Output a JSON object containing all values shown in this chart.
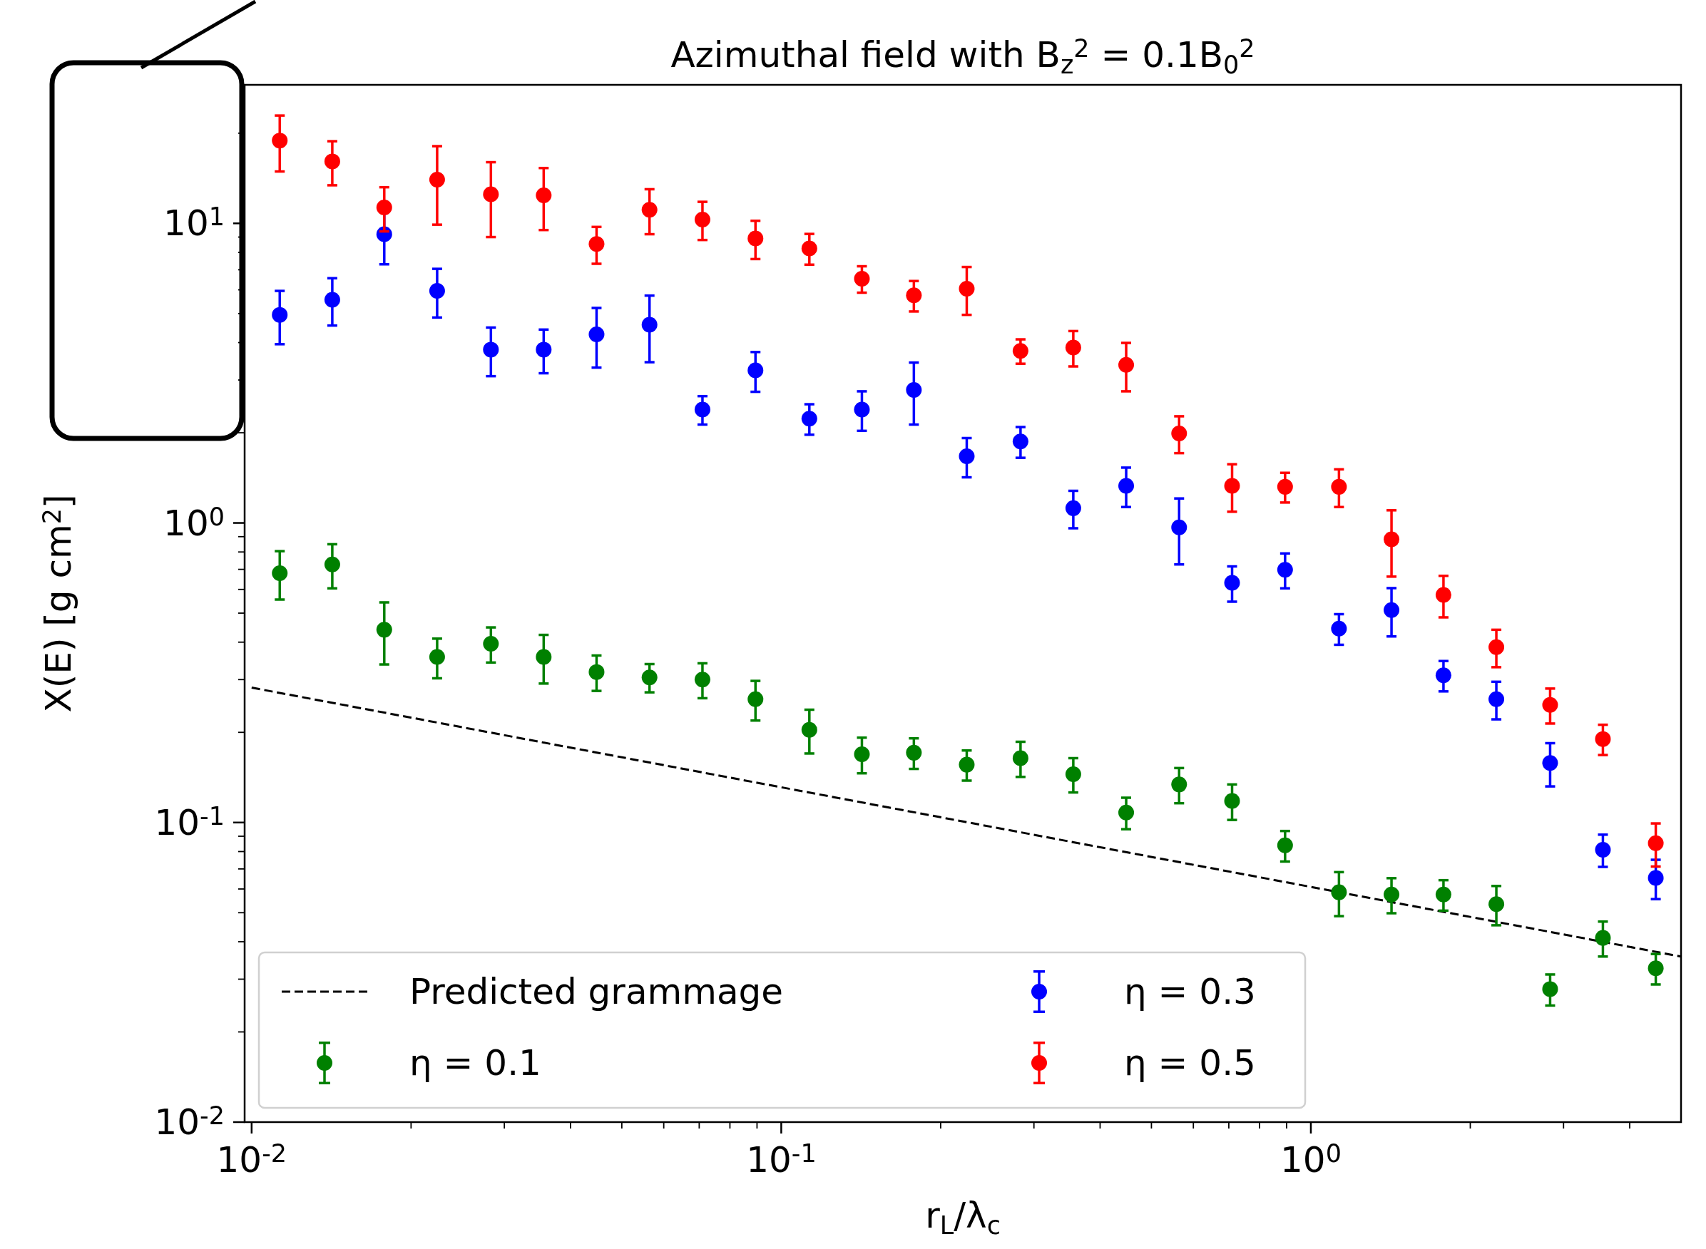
{
  "chart_data": {
    "type": "scatter",
    "title": "Azimuthal field with B$_{z}$$^{2}$ = 0.1B$_{0}$$^{2}$",
    "xlabel": "r$_{L}$/λ$_{c}$",
    "ylabel": "X(E) [g cm$^{2}$]",
    "log": "xy",
    "legend": "bottom left",
    "marker": "circle",
    "xlim": [
      0.0097,
      5.0
    ],
    "ylim": [
      0.01,
      29
    ],
    "xticks": [
      {
        "value": 0.01,
        "label": "10$^{-2}$"
      },
      {
        "value": 0.02,
        "label": null
      },
      {
        "value": 0.03,
        "label": null
      },
      {
        "value": 0.04,
        "label": null
      },
      {
        "value": 0.05,
        "label": null
      },
      {
        "value": 0.06,
        "label": null
      },
      {
        "value": 0.07,
        "label": null
      },
      {
        "value": 0.08,
        "label": null
      },
      {
        "value": 0.09,
        "label": null
      },
      {
        "value": 0.1,
        "label": "10$^{-1}$"
      },
      {
        "value": 0.2,
        "label": null
      },
      {
        "value": 0.3,
        "label": null
      },
      {
        "value": 0.4,
        "label": null
      },
      {
        "value": 0.5,
        "label": null
      },
      {
        "value": 0.6,
        "label": null
      },
      {
        "value": 0.7,
        "label": null
      },
      {
        "value": 0.8,
        "label": null
      },
      {
        "value": 0.9,
        "label": null
      },
      {
        "value": 1,
        "label": "10$^{0}$"
      },
      {
        "value": 2,
        "label": null
      },
      {
        "value": 3,
        "label": null
      },
      {
        "value": 4,
        "label": null
      }
    ],
    "yticks": [
      {
        "value": 0.01,
        "label": "10$^{-2}$"
      },
      {
        "value": 0.02,
        "label": null
      },
      {
        "value": 0.03,
        "label": null
      },
      {
        "value": 0.04,
        "label": null
      },
      {
        "value": 0.05,
        "label": null
      },
      {
        "value": 0.06,
        "label": null
      },
      {
        "value": 0.07,
        "label": null
      },
      {
        "value": 0.08,
        "label": null
      },
      {
        "value": 0.09,
        "label": null
      },
      {
        "value": 0.1,
        "label": "10$^{-1}$"
      },
      {
        "value": 0.2,
        "label": null
      },
      {
        "value": 0.3,
        "label": null
      },
      {
        "value": 0.4,
        "label": null
      },
      {
        "value": 0.5,
        "label": null
      },
      {
        "value": 0.6,
        "label": null
      },
      {
        "value": 0.7,
        "label": null
      },
      {
        "value": 0.8,
        "label": null
      },
      {
        "value": 0.9,
        "label": null
      },
      {
        "value": 1,
        "label": "10$^{0}$"
      },
      {
        "value": 2,
        "label": null
      },
      {
        "value": 3,
        "label": null
      },
      {
        "value": 4,
        "label": null
      },
      {
        "value": 5,
        "label": null
      },
      {
        "value": 6,
        "label": null
      },
      {
        "value": 7,
        "label": null
      },
      {
        "value": 8,
        "label": null
      },
      {
        "value": 9,
        "label": null
      },
      {
        "value": 10,
        "label": "10$^{1}$"
      },
      {
        "value": 20,
        "label": null
      }
    ],
    "x": [
      0.0113,
      0.0142,
      0.0178,
      0.0224,
      0.0283,
      0.0356,
      0.0448,
      0.0564,
      0.071,
      0.0894,
      0.113,
      0.142,
      0.178,
      0.224,
      0.283,
      0.356,
      0.448,
      0.564,
      0.71,
      0.894,
      1.13,
      1.42,
      1.78,
      2.24,
      2.83,
      3.56,
      4.48
    ],
    "series": [
      {
        "name": "Predicted grammage",
        "type": "line",
        "color": "#000000",
        "line_style": "dashed",
        "marker": "none",
        "x": [
          0.01,
          5
        ],
        "values": [
          0.282,
          0.0357
        ]
      },
      {
        "name": "η = 0.1",
        "color": "#008000",
        "values": [
          0.68,
          0.727,
          0.44,
          0.357,
          0.395,
          0.357,
          0.318,
          0.305,
          0.3,
          0.258,
          0.204,
          0.169,
          0.171,
          0.156,
          0.164,
          0.145,
          0.108,
          0.134,
          0.118,
          0.0839,
          0.0585,
          0.0575,
          0.0575,
          0.0534,
          0.0278,
          0.0412,
          0.0326
        ],
        "errors": [
          0.125,
          0.122,
          0.103,
          0.054,
          0.053,
          0.066,
          0.043,
          0.033,
          0.04,
          0.039,
          0.034,
          0.023,
          0.02,
          0.018,
          0.022,
          0.019,
          0.013,
          0.018,
          0.016,
          0.0098,
          0.0098,
          0.0077,
          0.0067,
          0.008,
          0.0033,
          0.0055,
          0.0038
        ]
      },
      {
        "name": "η = 0.3",
        "color": "#0000ff",
        "values": [
          4.95,
          5.56,
          9.2,
          5.95,
          3.79,
          3.79,
          4.26,
          4.59,
          2.39,
          3.23,
          2.23,
          2.39,
          2.78,
          1.67,
          1.87,
          1.12,
          1.33,
          0.967,
          0.631,
          0.698,
          0.444,
          0.512,
          0.31,
          0.258,
          0.158,
          0.0811,
          0.0653
        ],
        "errors": [
          1.0,
          1.0,
          1.9,
          1.1,
          0.7,
          0.63,
          0.96,
          1.15,
          0.26,
          0.49,
          0.26,
          0.36,
          0.65,
          0.25,
          0.22,
          0.16,
          0.2,
          0.24,
          0.085,
          0.093,
          0.052,
          0.094,
          0.036,
          0.037,
          0.026,
          0.01,
          0.0098
        ]
      },
      {
        "name": "η = 0.5",
        "color": "#ff0000",
        "values": [
          18.9,
          16.1,
          11.3,
          14.0,
          12.5,
          12.4,
          8.53,
          11.1,
          10.3,
          8.9,
          8.25,
          6.53,
          5.75,
          6.05,
          3.75,
          3.85,
          3.37,
          1.99,
          1.33,
          1.32,
          1.32,
          0.882,
          0.575,
          0.385,
          0.247,
          0.19,
          0.0853
        ],
        "errors": [
          4.0,
          2.7,
          1.9,
          4.1,
          3.5,
          2.9,
          1.2,
          1.9,
          1.5,
          1.3,
          0.97,
          0.66,
          0.67,
          1.1,
          0.35,
          0.52,
          0.62,
          0.28,
          0.24,
          0.15,
          0.19,
          0.22,
          0.091,
          0.055,
          0.033,
          0.022,
          0.014
        ]
      }
    ]
  }
}
